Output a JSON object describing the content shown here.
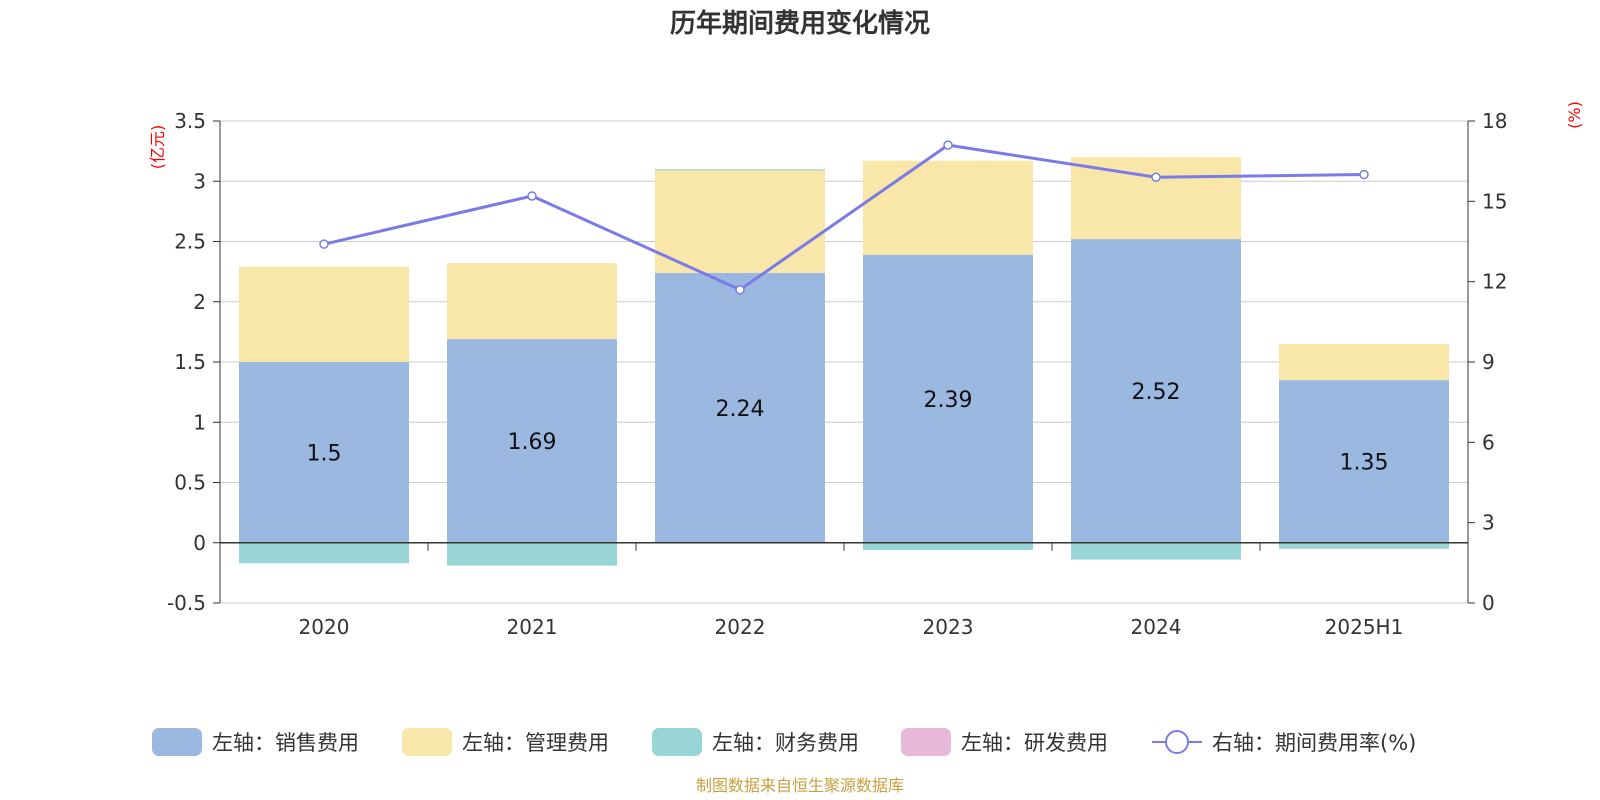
{
  "title": "历年期间费用变化情况",
  "source": "制图数据来自恒生聚源数据库",
  "chart_data": {
    "type": "bar",
    "stacked": true,
    "categories": [
      "2020",
      "2021",
      "2022",
      "2023",
      "2024",
      "2025H1"
    ],
    "left_axis": {
      "unit": "(亿元)",
      "ticks": [
        "3.5",
        "3",
        "2.5",
        "2",
        "1.5",
        "1",
        "0.5",
        "0",
        "-0.5"
      ],
      "min": -0.5,
      "max": 3.5
    },
    "right_axis": {
      "unit": "(%)",
      "ticks": [
        "18",
        "15",
        "12",
        "9",
        "6",
        "3",
        "0"
      ],
      "min": 0,
      "max": 18
    },
    "series": [
      {
        "name": "左轴：销售费用",
        "axis": "left",
        "color": "#9bb8e1",
        "values": [
          1.5,
          1.69,
          2.24,
          2.39,
          2.52,
          1.35
        ],
        "labels": [
          "1.5",
          "1.69",
          "2.24",
          "2.39",
          "2.52",
          "1.35"
        ]
      },
      {
        "name": "左轴：管理费用",
        "axis": "left",
        "color": "#f8e7a8",
        "values": [
          0.79,
          0.63,
          0.85,
          0.78,
          0.68,
          0.3
        ]
      },
      {
        "name": "左轴：财务费用",
        "axis": "left",
        "color": "#99d5d6",
        "values": [
          -0.17,
          -0.19,
          0.01,
          -0.06,
          -0.14,
          -0.05
        ]
      },
      {
        "name": "左轴：研发费用",
        "axis": "left",
        "color": "#e8b8d8",
        "values": [
          0,
          0,
          0,
          0,
          0,
          0
        ]
      },
      {
        "name": "右轴：期间费用率(%)",
        "axis": "right",
        "type": "line",
        "color": "#7b7be8",
        "values": [
          13.4,
          15.2,
          11.7,
          17.1,
          15.9,
          16.0
        ]
      }
    ],
    "legend_position": "bottom",
    "grid": true
  }
}
